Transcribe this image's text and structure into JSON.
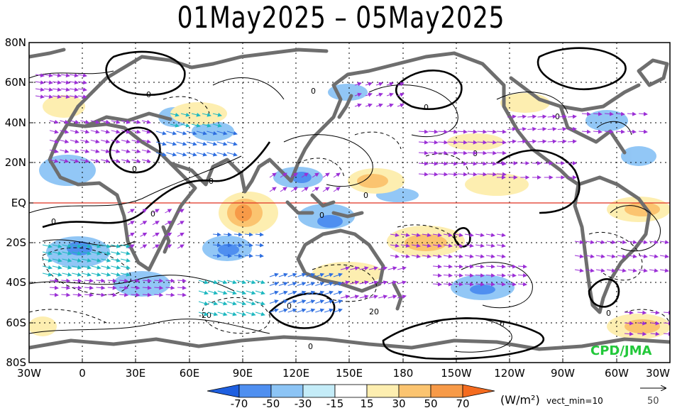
{
  "title": "01May2025 – 05May2025",
  "map": {
    "lat_labels": [
      "80N",
      "60N",
      "40N",
      "20N",
      "EQ",
      "20S",
      "40S",
      "60S",
      "80S"
    ],
    "lon_labels": [
      "30W",
      "0",
      "30E",
      "60E",
      "90E",
      "120E",
      "150E",
      "180",
      "150W",
      "120W",
      "90W",
      "60W",
      "30W"
    ],
    "credit": "CPD/JMA",
    "credit_color": "#22c83a",
    "equator_color": "#e03020",
    "contour_labels": [
      "0",
      "0",
      "0",
      "0",
      "0",
      "0",
      "0",
      "0",
      "0",
      "0",
      "0",
      "0",
      "0",
      "0",
      "-20",
      "20",
      "0"
    ]
  },
  "colorbar": {
    "tick_labels": [
      "-70",
      "-50",
      "-30",
      "-15",
      "15",
      "30",
      "50",
      "70"
    ],
    "colors": [
      "#1e5fe0",
      "#4f8ff0",
      "#8cc4f5",
      "#c4ecf8",
      "#ffffff",
      "#fdeeb0",
      "#fbc470",
      "#f79a48",
      "#f46b1f"
    ],
    "units": "(W/m²)",
    "vect_note": "vect_min=10"
  },
  "reference_vector": {
    "value": "50"
  }
}
